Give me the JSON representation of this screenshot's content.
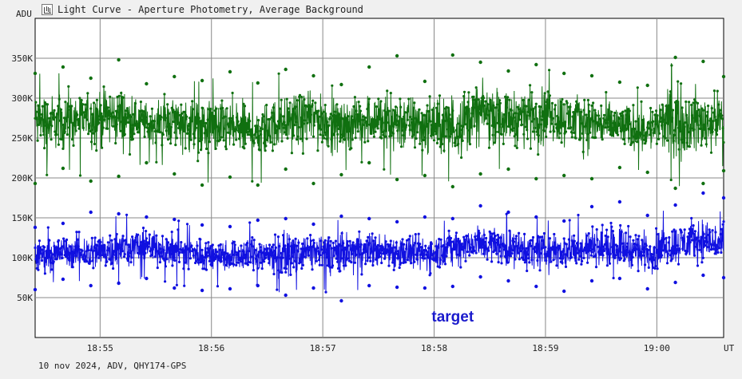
{
  "window": {
    "title": "Light Curve - Aperture Photometry, Average Background",
    "icon": "light-curve-icon"
  },
  "footer": {
    "info": "10 nov 2024, ADV, QHY174-GPS"
  },
  "chart_data": {
    "type": "line",
    "title": "Light Curve - Aperture Photometry, Average Background",
    "ylabel": "ADU",
    "xlabel": "UT",
    "ylim": [
      0,
      400000
    ],
    "xlim": [
      "18:54:25",
      "19:00:36"
    ],
    "x_ticks": [
      "18:55",
      "18:56",
      "18:57",
      "18:58",
      "18:59",
      "19:00"
    ],
    "y_ticks": [
      {
        "value": 50000,
        "label": "50K"
      },
      {
        "value": 100000,
        "label": "100K"
      },
      {
        "value": 150000,
        "label": "150K"
      },
      {
        "value": 200000,
        "label": "200K"
      },
      {
        "value": 250000,
        "label": "250K"
      },
      {
        "value": 300000,
        "label": "300K"
      },
      {
        "value": 350000,
        "label": "350K"
      }
    ],
    "grid": true,
    "annotations": [
      {
        "text": "target",
        "color": "#1a1acc",
        "x": "18:58:10",
        "y": 27000
      }
    ],
    "series": [
      {
        "name": "",
        "color": "#107010",
        "x": [
          "18:54:25",
          "18:54:40",
          "18:54:55",
          "18:55:10",
          "18:55:25",
          "18:55:40",
          "18:55:55",
          "18:56:10",
          "18:56:25",
          "18:56:40",
          "18:56:55",
          "18:57:10",
          "18:57:25",
          "18:57:40",
          "18:57:55",
          "18:58:10",
          "18:58:25",
          "18:58:40",
          "18:58:55",
          "18:59:10",
          "18:59:25",
          "18:59:40",
          "18:59:55",
          "19:00:10",
          "19:00:25",
          "19:00:36"
        ],
        "values": [
          272000,
          268000,
          281000,
          277000,
          269000,
          275000,
          263000,
          262000,
          258000,
          271000,
          279000,
          266000,
          274000,
          270000,
          267000,
          262000,
          285000,
          276000,
          283000,
          278000,
          271000,
          264000,
          260000,
          274000,
          268000,
          276000
        ],
        "high": [
          331000,
          339000,
          325000,
          348000,
          318000,
          327000,
          322000,
          333000,
          319000,
          336000,
          328000,
          317000,
          339000,
          353000,
          321000,
          354000,
          345000,
          334000,
          342000,
          331000,
          328000,
          320000,
          316000,
          351000,
          346000,
          327000
        ],
        "low": [
          193000,
          212000,
          196000,
          202000,
          219000,
          205000,
          191000,
          201000,
          191000,
          211000,
          193000,
          204000,
          219000,
          198000,
          203000,
          189000,
          205000,
          211000,
          199000,
          203000,
          199000,
          213000,
          207000,
          187000,
          193000,
          209000
        ]
      },
      {
        "name": "target",
        "color": "#1010e0",
        "x": [
          "18:54:25",
          "18:54:40",
          "18:54:55",
          "18:55:10",
          "18:55:25",
          "18:55:40",
          "18:55:55",
          "18:56:10",
          "18:56:25",
          "18:56:40",
          "18:56:55",
          "18:57:10",
          "18:57:25",
          "18:57:40",
          "18:57:55",
          "18:58:10",
          "18:58:25",
          "18:58:40",
          "18:58:55",
          "18:59:10",
          "18:59:25",
          "18:59:40",
          "18:59:55",
          "19:00:10",
          "19:00:25",
          "19:00:36"
        ],
        "values": [
          102000,
          108000,
          105000,
          112000,
          115000,
          109000,
          106000,
          104000,
          103000,
          107000,
          110000,
          106000,
          111000,
          109000,
          104000,
          114000,
          118000,
          112000,
          108000,
          109000,
          113000,
          111000,
          107000,
          116000,
          121000,
          113000
        ],
        "high": [
          138000,
          143000,
          157000,
          155000,
          151000,
          148000,
          141000,
          139000,
          147000,
          149000,
          142000,
          152000,
          149000,
          145000,
          151000,
          149000,
          165000,
          157000,
          151000,
          146000,
          164000,
          170000,
          153000,
          166000,
          181000,
          175000
        ],
        "low": [
          60000,
          73000,
          65000,
          68000,
          74000,
          62000,
          59000,
          61000,
          65000,
          53000,
          62000,
          46000,
          65000,
          63000,
          62000,
          64000,
          76000,
          71000,
          64000,
          58000,
          71000,
          74000,
          61000,
          69000,
          78000,
          75000
        ]
      }
    ]
  }
}
